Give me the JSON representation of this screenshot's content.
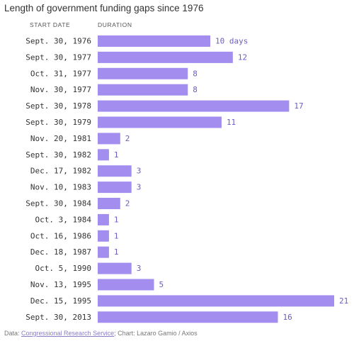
{
  "chart_data": {
    "type": "bar",
    "orientation": "horizontal",
    "title": "Length of government funding gaps since 1976",
    "column_headers": {
      "category": "START DATE",
      "value": "DURATION"
    },
    "categories": [
      "Sept. 30, 1976",
      "Sept. 30, 1977",
      "Oct. 31, 1977",
      "Nov. 30, 1977",
      "Sept. 30, 1978",
      "Sept. 30, 1979",
      "Nov. 20, 1981",
      "Sept. 30, 1982",
      "Dec. 17, 1982",
      "Nov. 10, 1983",
      "Sept. 30, 1984",
      "Oct. 3, 1984",
      "Oct. 16, 1986",
      "Dec. 18, 1987",
      "Oct. 5, 1990",
      "Nov. 13, 1995",
      "Dec. 15, 1995",
      "Sept. 30, 2013"
    ],
    "values": [
      10,
      12,
      8,
      8,
      17,
      11,
      2,
      1,
      3,
      3,
      2,
      1,
      1,
      1,
      3,
      5,
      21,
      16
    ],
    "first_value_suffix": " days",
    "xlim": [
      0,
      21
    ],
    "grid": false,
    "colors": {
      "bar": "#a38ef0",
      "value_text": "#6b5cc4",
      "category_text": "#333333"
    }
  },
  "footer": {
    "prefix": "Data: ",
    "source": "Congressional Research Service",
    "suffix": "; Chart: Lazaro Gamio / Axios"
  }
}
